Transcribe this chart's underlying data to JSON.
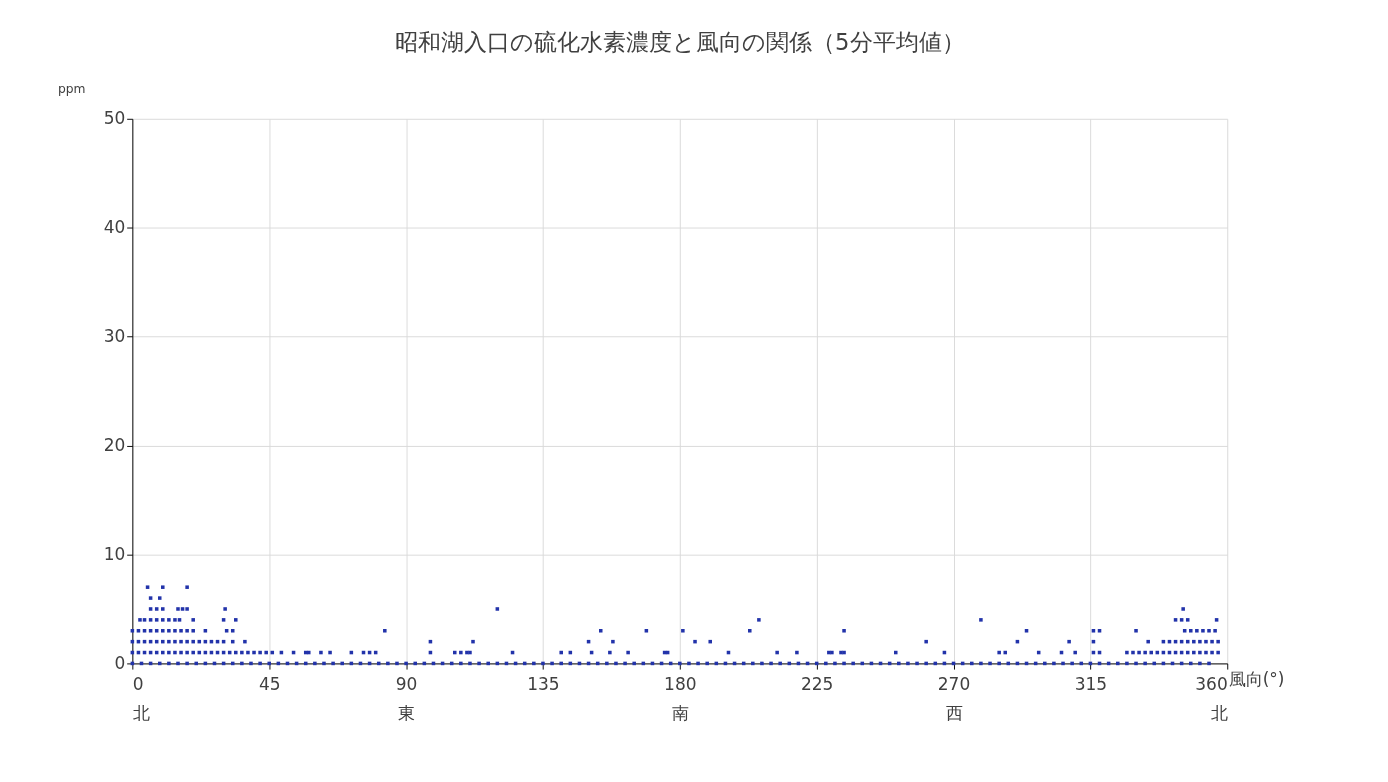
{
  "chart_data": {
    "type": "scatter",
    "title": "昭和湖入口の硫化水素濃度と風向の関係（5分平均値）",
    "xlabel": "風向(°)",
    "ylabel": "ppm",
    "xlim": [
      0,
      360
    ],
    "ylim": [
      0,
      50
    ],
    "xticks": [
      {
        "value": 0,
        "label": "0\n北"
      },
      45,
      {
        "value": 90,
        "label": "90\n東"
      },
      135,
      {
        "value": 180,
        "label": "180\n南"
      },
      225,
      {
        "value": 270,
        "label": "270\n西"
      },
      315,
      {
        "value": 360,
        "label": "360\n北"
      }
    ],
    "yticks": [
      0,
      10,
      20,
      30,
      40,
      50
    ],
    "grid": true,
    "marker": "square",
    "legend": false,
    "series": [
      {
        "color": "#2233aa",
        "x": [
          0,
          3,
          6,
          9,
          12,
          15,
          18,
          21,
          24,
          27,
          30,
          33,
          36,
          39,
          42,
          45,
          48,
          51,
          54,
          57,
          60,
          63,
          66,
          69,
          72,
          75,
          78,
          81,
          84,
          87,
          90,
          93,
          96,
          99,
          102,
          105,
          108,
          111,
          114,
          117,
          120,
          123,
          126,
          129,
          132,
          135,
          138,
          141,
          144,
          147,
          150,
          153,
          156,
          159,
          162,
          165,
          168,
          171,
          174,
          177,
          180,
          183,
          186,
          189,
          192,
          195,
          198,
          201,
          204,
          207,
          210,
          213,
          216,
          219,
          222,
          225,
          228,
          231,
          234,
          237,
          240,
          243,
          246,
          249,
          252,
          255,
          258,
          261,
          264,
          267,
          270,
          273,
          276,
          279,
          282,
          285,
          288,
          291,
          294,
          297,
          300,
          303,
          306,
          309,
          312,
          315,
          318,
          321,
          324,
          327,
          330,
          333,
          336,
          339,
          342,
          345,
          348,
          351,
          354,
          0,
          2,
          4,
          6,
          8,
          10,
          12,
          14,
          16,
          18,
          20,
          22,
          24,
          26,
          28,
          30,
          32,
          34,
          36,
          38,
          40,
          42,
          44,
          46,
          49,
          53,
          57,
          58,
          62,
          65,
          72,
          76,
          78,
          80,
          98,
          106,
          108,
          110,
          111,
          125,
          141,
          144,
          151,
          157,
          163,
          175,
          176,
          196,
          212,
          218.5,
          229,
          230,
          233,
          234,
          251,
          267,
          285,
          287,
          298,
          305.5,
          310,
          316,
          318,
          327,
          329,
          331,
          333,
          335,
          337,
          339,
          341,
          343,
          345,
          347,
          349,
          351,
          353,
          355,
          357,
          0,
          2,
          4,
          6,
          8,
          10,
          12,
          14,
          16,
          18,
          20,
          22,
          24,
          26,
          28,
          30,
          33,
          37,
          98,
          112,
          150,
          158,
          185,
          190,
          261,
          291,
          308,
          316,
          334,
          339,
          341,
          343,
          345,
          347,
          349,
          351,
          353,
          355,
          357,
          0,
          2,
          4,
          6,
          8,
          10,
          12,
          14,
          16,
          18,
          20,
          24,
          31,
          33,
          83,
          154,
          169,
          181,
          203,
          234,
          294,
          316,
          318,
          330,
          346,
          348,
          350,
          352,
          354,
          356,
          2.5,
          4,
          6,
          8,
          10,
          12,
          14,
          15.5,
          20,
          30,
          34,
          206,
          279,
          343,
          345,
          347,
          356.5,
          6,
          8,
          10,
          15,
          16.5,
          18,
          30.5,
          120,
          345.5,
          6,
          9,
          5,
          10,
          18
        ],
        "values": [
          0,
          0,
          0,
          0,
          0,
          0,
          0,
          0,
          0,
          0,
          0,
          0,
          0,
          0,
          0,
          0,
          0,
          0,
          0,
          0,
          0,
          0,
          0,
          0,
          0,
          0,
          0,
          0,
          0,
          0,
          0,
          0,
          0,
          0,
          0,
          0,
          0,
          0,
          0,
          0,
          0,
          0,
          0,
          0,
          0,
          0,
          0,
          0,
          0,
          0,
          0,
          0,
          0,
          0,
          0,
          0,
          0,
          0,
          0,
          0,
          0,
          0,
          0,
          0,
          0,
          0,
          0,
          0,
          0,
          0,
          0,
          0,
          0,
          0,
          0,
          0,
          0,
          0,
          0,
          0,
          0,
          0,
          0,
          0,
          0,
          0,
          0,
          0,
          0,
          0,
          0,
          0,
          0,
          0,
          0,
          0,
          0,
          0,
          0,
          0,
          0,
          0,
          0,
          0,
          0,
          0,
          0,
          0,
          0,
          0,
          0,
          0,
          0,
          0,
          0,
          0,
          0,
          0,
          0,
          1,
          1,
          1,
          1,
          1,
          1,
          1,
          1,
          1,
          1,
          1,
          1,
          1,
          1,
          1,
          1,
          1,
          1,
          1,
          1,
          1,
          1,
          1,
          1,
          1,
          1,
          1,
          1,
          1,
          1,
          1,
          1,
          1,
          1,
          1,
          1,
          1,
          1,
          1,
          1,
          1,
          1,
          1,
          1,
          1,
          1,
          1,
          1,
          1,
          1,
          1,
          1,
          1,
          1,
          1,
          1,
          1,
          1,
          1,
          1,
          1,
          1,
          1,
          1,
          1,
          1,
          1,
          1,
          1,
          1,
          1,
          1,
          1,
          1,
          1,
          1,
          1,
          1,
          1,
          2,
          2,
          2,
          2,
          2,
          2,
          2,
          2,
          2,
          2,
          2,
          2,
          2,
          2,
          2,
          2,
          2,
          2,
          2,
          2,
          2,
          2,
          2,
          2,
          2,
          2,
          2,
          2,
          2,
          2,
          2,
          2,
          2,
          2,
          2,
          2,
          2,
          2,
          2,
          3,
          3,
          3,
          3,
          3,
          3,
          3,
          3,
          3,
          3,
          3,
          3,
          3,
          3,
          3,
          3,
          3,
          3,
          3,
          3,
          3,
          3,
          3,
          3,
          3,
          3,
          3,
          3,
          3,
          3,
          4,
          4,
          4,
          4,
          4,
          4,
          4,
          4,
          4,
          4,
          4,
          4,
          4,
          4,
          4,
          4,
          4,
          5,
          5,
          5,
          5,
          5,
          5,
          5,
          5,
          5,
          6,
          6,
          7,
          7,
          7
        ]
      }
    ]
  }
}
